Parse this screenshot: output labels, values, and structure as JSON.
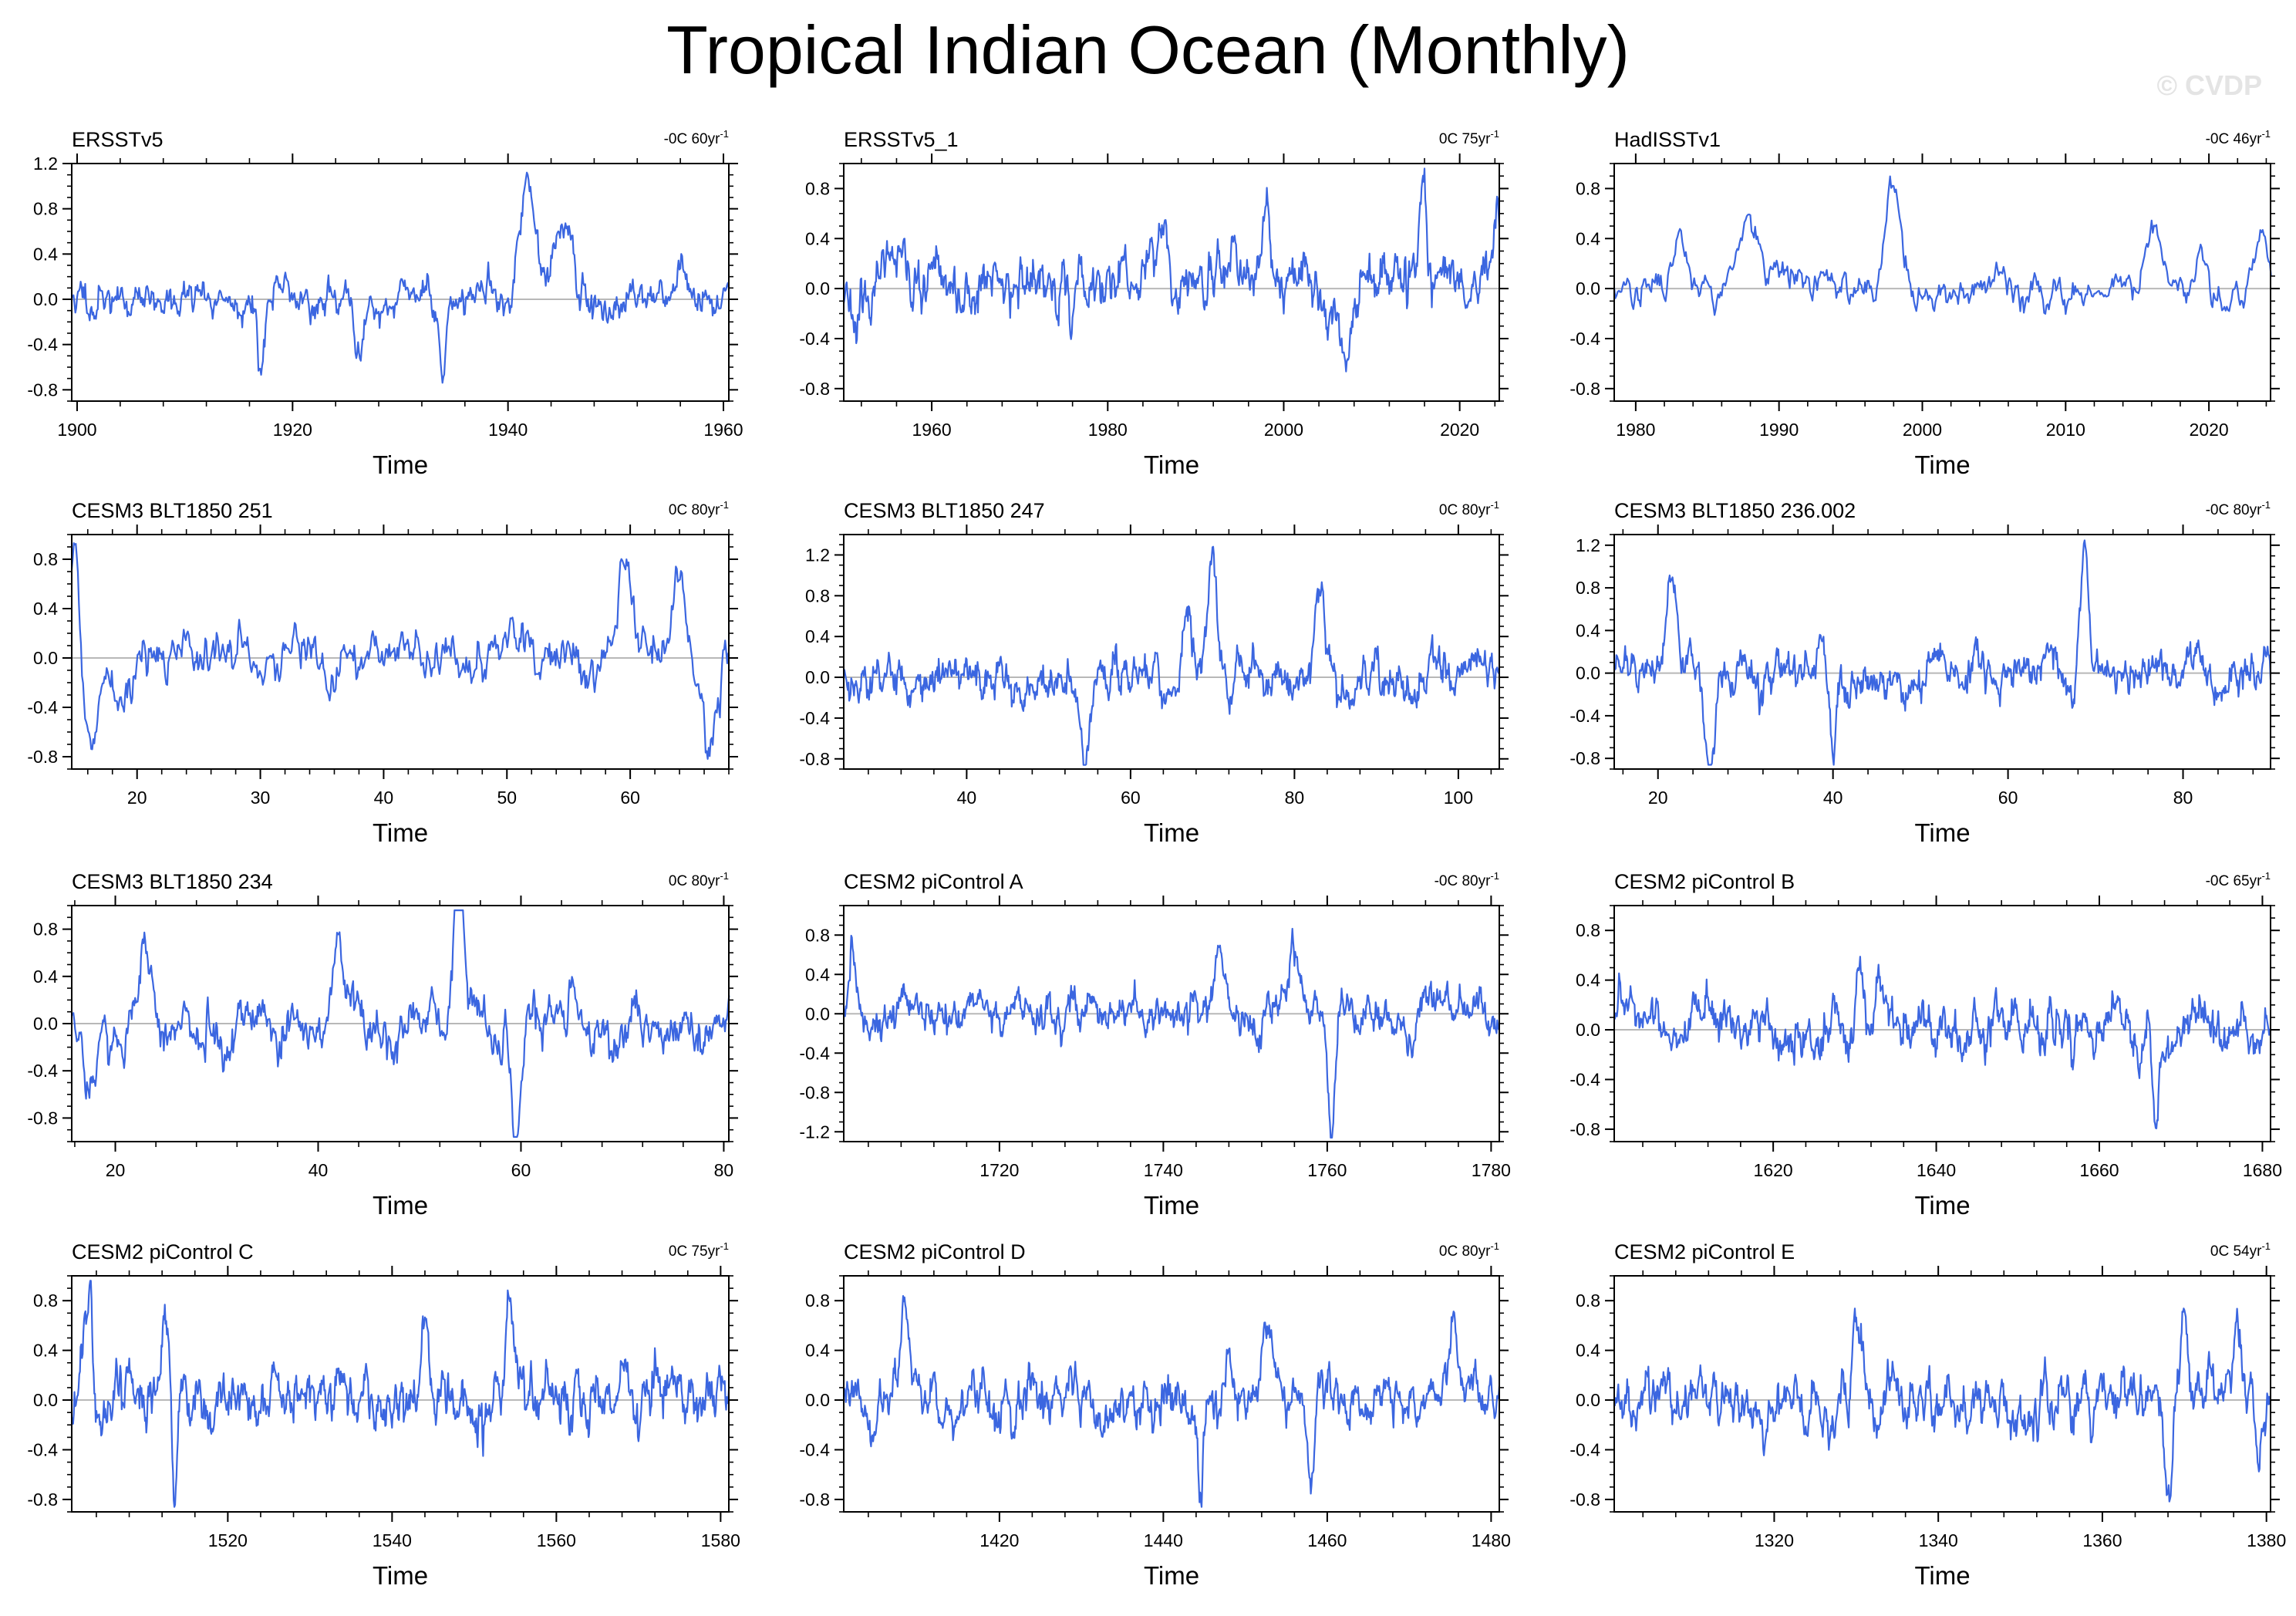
{
  "title": "Tropical Indian Ocean (Monthly)",
  "watermark": "© CVDP",
  "colors": {
    "line": "#3b66e0",
    "axis": "#000000",
    "zero": "#b8b8b8"
  },
  "chart_data": [
    {
      "type": "line",
      "title": "ERSSTv5",
      "annotation": "-0C 60yr",
      "annotation_sup": "-1",
      "xlabel": "Time",
      "xlim": [
        1899.5,
        1960.5
      ],
      "ylim": [
        -0.9,
        1.2
      ],
      "xticks": [
        1900,
        1920,
        1940,
        1960
      ],
      "yticks": [
        1.2,
        0.8,
        0.4,
        0.0,
        -0.4,
        -0.8
      ],
      "ytick_labels": [
        "1.2",
        "0.8",
        "0.4",
        "0.0",
        "-0.4",
        "-0.8"
      ],
      "seed": 11,
      "amplitude": 0.17,
      "events": [
        [
          1941.8,
          0.95,
          0.7
        ],
        [
          1944.8,
          0.7,
          0.8
        ],
        [
          1934,
          -0.75,
          0.3
        ],
        [
          1917,
          -0.65,
          0.25
        ],
        [
          1926,
          -0.45,
          0.4
        ]
      ]
    },
    {
      "type": "line",
      "title": "ERSSTv5_1",
      "annotation": "0C 75yr",
      "annotation_sup": "-1",
      "xlabel": "Time",
      "xlim": [
        1950,
        2024.5
      ],
      "ylim": [
        -0.9,
        1.0
      ],
      "xticks": [
        1960,
        1980,
        2000,
        2020
      ],
      "yticks": [
        0.8,
        0.4,
        0.0,
        -0.4,
        -0.8
      ],
      "ytick_labels": [
        "0.8",
        "0.4",
        "0.0",
        "-0.4",
        "-0.8"
      ],
      "seed": 23,
      "amplitude": 0.22,
      "events": [
        [
          1998,
          0.75,
          0.4
        ],
        [
          2015.8,
          0.7,
          0.5
        ],
        [
          2007,
          -0.6,
          0.4
        ],
        [
          2024.2,
          0.7,
          0.3
        ],
        [
          1986.5,
          0.6,
          0.4
        ]
      ]
    },
    {
      "type": "line",
      "title": "HadISSTv1",
      "annotation": "-0C 46yr",
      "annotation_sup": "-1",
      "xlabel": "Time",
      "xlim": [
        1978.5,
        2024.3
      ],
      "ylim": [
        -0.9,
        1.0
      ],
      "xticks": [
        1980,
        1990,
        2000,
        2010,
        2020
      ],
      "yticks": [
        0.8,
        0.4,
        0.0,
        -0.4,
        -0.8
      ],
      "ytick_labels": [
        "0.8",
        "0.4",
        "0.0",
        "-0.4",
        "-0.8"
      ],
      "seed": 37,
      "amplitude": 0.14,
      "events": [
        [
          1998,
          0.7,
          0.6
        ],
        [
          1983.2,
          0.5,
          0.5
        ],
        [
          1987.8,
          0.5,
          0.7
        ],
        [
          2016.2,
          0.6,
          0.6
        ],
        [
          2023.8,
          0.55,
          0.4
        ],
        [
          2019.5,
          0.3,
          0.3
        ]
      ]
    },
    {
      "type": "line",
      "title": "CESM3 BLT1850 251",
      "annotation": "0C 80yr",
      "annotation_sup": "-1",
      "xlabel": "Time",
      "xlim": [
        14.7,
        68
      ],
      "ylim": [
        -0.9,
        1.0
      ],
      "xticks": [
        20,
        30,
        40,
        50,
        60
      ],
      "yticks": [
        0.8,
        0.4,
        0.0,
        -0.4,
        -0.8
      ],
      "ytick_labels": [
        "0.8",
        "0.4",
        "0.0",
        "-0.4",
        "-0.8"
      ],
      "seed": 41,
      "amplitude": 0.2,
      "events": [
        [
          15,
          0.85,
          0.4
        ],
        [
          16.2,
          -0.7,
          0.6
        ],
        [
          59.5,
          0.75,
          0.5
        ],
        [
          64,
          0.7,
          0.5
        ],
        [
          66.5,
          -0.6,
          0.4
        ]
      ]
    },
    {
      "type": "line",
      "title": "CESM3 BLT1850 247",
      "annotation": "0C 80yr",
      "annotation_sup": "-1",
      "xlabel": "Time",
      "xlim": [
        25,
        105
      ],
      "ylim": [
        -0.9,
        1.4
      ],
      "xticks": [
        40,
        60,
        80,
        100
      ],
      "yticks": [
        1.2,
        0.8,
        0.4,
        0.0,
        -0.4,
        -0.8
      ],
      "ytick_labels": [
        "1.2",
        "0.8",
        "0.4",
        "0.0",
        "-0.4",
        "-0.8"
      ],
      "seed": 53,
      "amplitude": 0.22,
      "events": [
        [
          70,
          1.2,
          0.6
        ],
        [
          67,
          0.75,
          0.5
        ],
        [
          54.5,
          -0.7,
          0.5
        ],
        [
          83,
          0.7,
          0.6
        ]
      ]
    },
    {
      "type": "line",
      "title": "CESM3 BLT1850 236.002",
      "annotation": "-0C 80yr",
      "annotation_sup": "-1",
      "xlabel": "Time",
      "xlim": [
        15,
        90
      ],
      "ylim": [
        -0.9,
        1.3
      ],
      "xticks": [
        20,
        40,
        60,
        80
      ],
      "yticks": [
        1.2,
        0.8,
        0.4,
        0.0,
        -0.4,
        -0.8
      ],
      "ytick_labels": [
        "1.2",
        "0.8",
        "0.4",
        "0.0",
        "-0.4",
        "-0.8"
      ],
      "seed": 61,
      "amplitude": 0.2,
      "events": [
        [
          68.8,
          1.15,
          0.5
        ],
        [
          21.5,
          0.95,
          0.6
        ],
        [
          26,
          -0.75,
          0.6
        ],
        [
          40,
          -0.8,
          0.3
        ]
      ]
    },
    {
      "type": "line",
      "title": "CESM3 BLT1850 234",
      "annotation": "0C 80yr",
      "annotation_sup": "-1",
      "xlabel": "Time",
      "xlim": [
        15.7,
        80.5
      ],
      "ylim": [
        -1.0,
        1.0
      ],
      "xticks": [
        20,
        40,
        60,
        80
      ],
      "yticks": [
        0.8,
        0.4,
        0.0,
        -0.4,
        -0.8
      ],
      "ytick_labels": [
        "0.8",
        "0.4",
        "0.0",
        "-0.4",
        "-0.8"
      ],
      "seed": 73,
      "amplitude": 0.22,
      "events": [
        [
          54,
          0.85,
          0.5
        ],
        [
          59.5,
          -0.95,
          0.4
        ],
        [
          23,
          0.7,
          0.6
        ],
        [
          17.5,
          -0.55,
          0.5
        ],
        [
          42,
          0.8,
          0.5
        ]
      ]
    },
    {
      "type": "line",
      "title": "CESM2 piControl A",
      "annotation": "-0C 80yr",
      "annotation_sup": "-1",
      "xlabel": "Time",
      "xlim": [
        1701,
        1781
      ],
      "ylim": [
        -1.3,
        1.1
      ],
      "xticks": [
        1720,
        1740,
        1760,
        1780
      ],
      "yticks": [
        0.8,
        0.4,
        0.0,
        -0.4,
        -0.8,
        -1.2
      ],
      "ytick_labels": [
        "0.8",
        "0.4",
        "0.0",
        "-0.4",
        "-0.8",
        "-1.2"
      ],
      "seed": 83,
      "amplitude": 0.2,
      "events": [
        [
          1760.5,
          -1.1,
          0.4
        ],
        [
          1756,
          0.7,
          0.6
        ],
        [
          1747,
          0.7,
          0.6
        ],
        [
          1702,
          0.5,
          0.4
        ]
      ]
    },
    {
      "type": "line",
      "title": "CESM2 piControl B",
      "annotation": "-0C 65yr",
      "annotation_sup": "-1",
      "xlabel": "Time",
      "xlim": [
        1600.5,
        1681
      ],
      "ylim": [
        -0.9,
        1.0
      ],
      "xticks": [
        1620,
        1640,
        1660,
        1680
      ],
      "yticks": [
        0.8,
        0.4,
        0.0,
        -0.4,
        -0.8
      ],
      "ytick_labels": [
        "0.8",
        "0.4",
        "0.0",
        "-0.4",
        "-0.8"
      ],
      "seed": 97,
      "amplitude": 0.2,
      "events": [
        [
          1630.5,
          0.65,
          0.5
        ],
        [
          1667,
          -0.7,
          0.4
        ],
        [
          1633,
          0.55,
          0.5
        ]
      ]
    },
    {
      "type": "line",
      "title": "CESM2 piControl C",
      "annotation": "0C 75yr",
      "annotation_sup": "-1",
      "xlabel": "Time",
      "xlim": [
        1501,
        1581
      ],
      "ylim": [
        -0.9,
        1.0
      ],
      "xticks": [
        1520,
        1540,
        1560,
        1580
      ],
      "yticks": [
        0.8,
        0.4,
        0.0,
        -0.4,
        -0.8
      ],
      "ytick_labels": [
        "0.8",
        "0.4",
        "0.0",
        "-0.4",
        "-0.8"
      ],
      "seed": 103,
      "amplitude": 0.22,
      "events": [
        [
          1503,
          0.85,
          0.5
        ],
        [
          1513.5,
          -0.8,
          0.3
        ],
        [
          1512.5,
          0.75,
          0.5
        ],
        [
          1544,
          0.7,
          0.5
        ],
        [
          1554.5,
          0.7,
          0.5
        ]
      ]
    },
    {
      "type": "line",
      "title": "CESM2 piControl D",
      "annotation": "0C 80yr",
      "annotation_sup": "-1",
      "xlabel": "Time",
      "xlim": [
        1401,
        1481
      ],
      "ylim": [
        -0.9,
        1.0
      ],
      "xticks": [
        1420,
        1440,
        1460,
        1480
      ],
      "yticks": [
        0.8,
        0.4,
        0.0,
        -0.4,
        -0.8
      ],
      "ytick_labels": [
        "0.8",
        "0.4",
        "0.0",
        "-0.4",
        "-0.8"
      ],
      "seed": 109,
      "amplitude": 0.2,
      "events": [
        [
          1408.5,
          0.85,
          0.5
        ],
        [
          1453,
          0.7,
          0.6
        ],
        [
          1458,
          -0.75,
          0.4
        ],
        [
          1475.5,
          0.65,
          0.5
        ],
        [
          1444.5,
          -0.75,
          0.4
        ]
      ]
    },
    {
      "type": "line",
      "title": "CESM2 piControl E",
      "annotation": "0C 54yr",
      "annotation_sup": "-1",
      "xlabel": "Time",
      "xlim": [
        1300.5,
        1380.5
      ],
      "ylim": [
        -0.9,
        1.0
      ],
      "xticks": [
        1320,
        1340,
        1360,
        1380
      ],
      "yticks": [
        0.8,
        0.4,
        0.0,
        -0.4,
        -0.8
      ],
      "ytick_labels": [
        "0.8",
        "0.4",
        "0.0",
        "-0.4",
        "-0.8"
      ],
      "seed": 127,
      "amplitude": 0.2,
      "events": [
        [
          1368,
          -0.85,
          0.4
        ],
        [
          1330,
          0.65,
          0.5
        ],
        [
          1370,
          0.65,
          0.5
        ],
        [
          1379,
          -0.65,
          0.4
        ],
        [
          1376.5,
          0.6,
          0.5
        ]
      ]
    }
  ]
}
